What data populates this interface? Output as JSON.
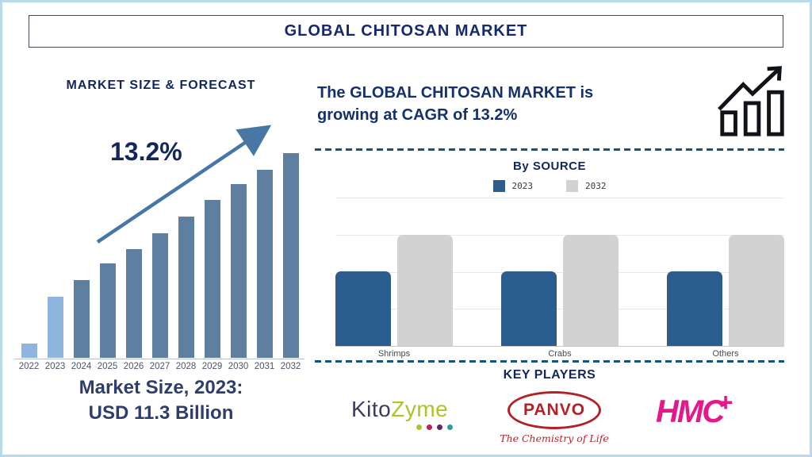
{
  "frame": {
    "title": "GLOBAL CHITOSAN MARKET"
  },
  "left_panel": {
    "heading": "MARKET SIZE & FORECAST",
    "cagr_label": "13.2%",
    "market_size_line1": "Market Size, 2023:",
    "market_size_line2": "USD 11.3 Billion"
  },
  "right_panel": {
    "headline_line1": "The GLOBAL CHITOSAN MARKET is",
    "headline_line2": "growing at CAGR of 13.2%",
    "by_source_heading": "By SOURCE",
    "legend": [
      {
        "label": "2023",
        "color": "#2b5e8e"
      },
      {
        "label": "2032",
        "color": "#d2d2d2"
      }
    ],
    "key_players_heading": "KEY PLAYERS",
    "key_players": [
      {
        "name": "KitoZyme",
        "logo_text_primary": "Kito",
        "logo_text_secondary": "Zyme",
        "dot_colors": [
          "#aec327",
          "#c21f5b",
          "#5c2a64",
          "#2d9aa4"
        ]
      },
      {
        "name": "Panvo",
        "logo_text": "PANVO",
        "tagline": "The Chemistry of Life",
        "color": "#b32025"
      },
      {
        "name": "HMC+",
        "logo_text": "HMC",
        "logo_suffix": "+",
        "color": "#e5188a"
      }
    ]
  },
  "chart_data": [
    {
      "type": "bar",
      "title": "MARKET SIZE & FORECAST",
      "categories": [
        "2022",
        "2023",
        "2024",
        "2025",
        "2026",
        "2027",
        "2028",
        "2029",
        "2030",
        "2031",
        "2032"
      ],
      "values_relative_pct": [
        7,
        30,
        38,
        46,
        53,
        61,
        69,
        77,
        85,
        92,
        100
      ],
      "bar_styles": [
        "light",
        "light",
        "dark",
        "dark",
        "dark",
        "dark",
        "dark",
        "dark",
        "dark",
        "dark",
        "dark"
      ],
      "annotation": "13.2%",
      "stated_value": "2023 = USD 11.3 Billion",
      "xlabel": "",
      "ylabel": "",
      "ylim": [
        0,
        100
      ],
      "grid": false,
      "axis_labels_shown": false
    },
    {
      "type": "bar",
      "title": "By SOURCE",
      "categories": [
        "Shrimps",
        "Crabs",
        "Others"
      ],
      "series": [
        {
          "name": "2023",
          "color": "#2b5e8e",
          "values": [
            50,
            50,
            50
          ]
        },
        {
          "name": "2032",
          "color": "#d2d2d2",
          "values": [
            75,
            75,
            75
          ]
        }
      ],
      "xlabel": "",
      "ylabel": "",
      "ylim": [
        0,
        100
      ],
      "grid": true,
      "legend_position": "top",
      "axis_labels_shown": false
    }
  ],
  "colors": {
    "background": "#ffffff",
    "frame_border": "#b8d9e8",
    "navy": "#16296b",
    "bar_light": "#8fb5de",
    "bar_dark": "#5f7fa1",
    "arrow": "#4877a6",
    "dashed_divider": "#16537e",
    "gridline": "#e8e8e8",
    "axis_label": "#4a5568"
  }
}
